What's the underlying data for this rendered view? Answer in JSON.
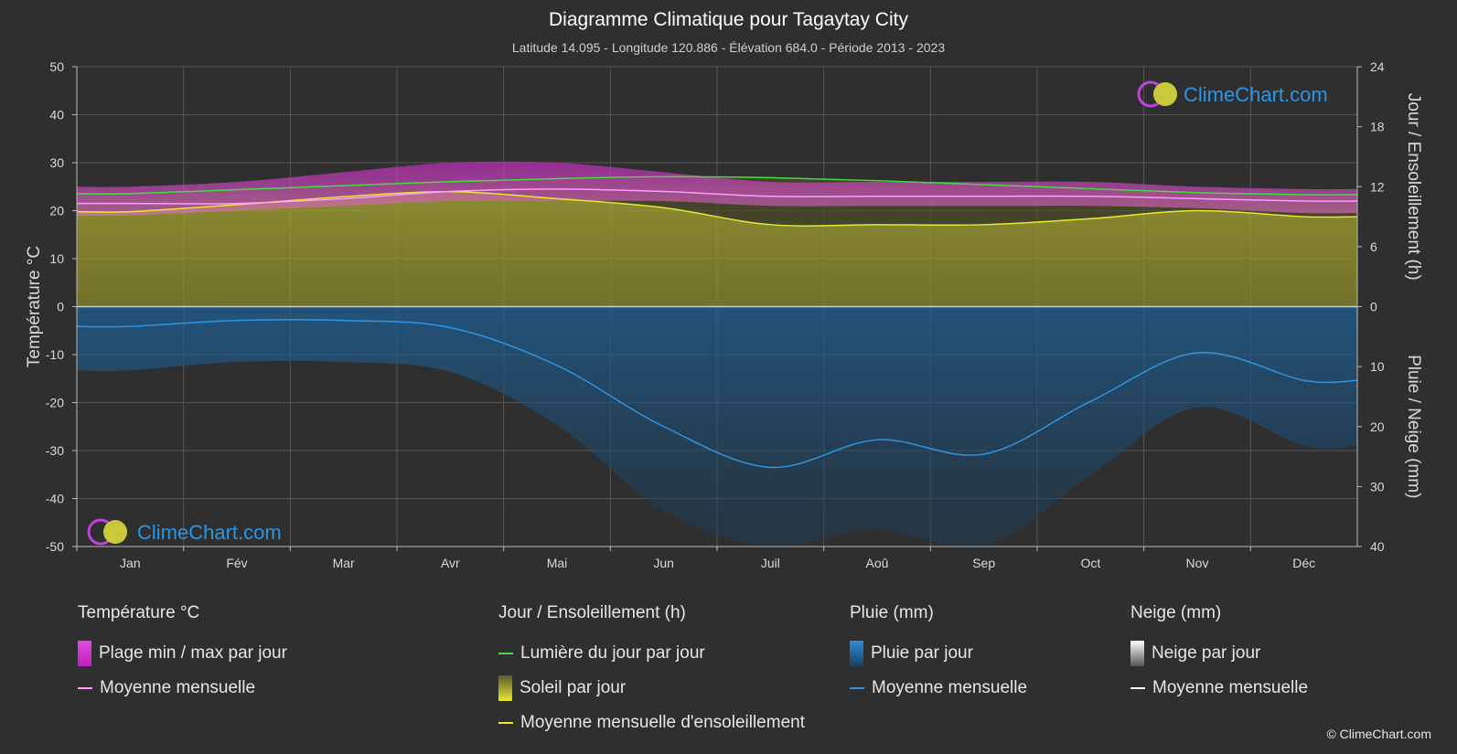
{
  "title": "Diagramme Climatique pour Tagaytay City",
  "subtitle": "Latitude 14.095 - Longitude 120.886 - Élévation 684.0 - Période 2013 - 2023",
  "brand": "ClimeChart.com",
  "copyright": "© ClimeChart.com",
  "colors": {
    "background": "#2f2f2f",
    "temp_range": "#d42fd4",
    "temp_mean": "#ff9cff",
    "daylight": "#44dd44",
    "sunshine_fill": "#9a9a2c",
    "sunshine_mean": "#e8e832",
    "rain_fill": "#1d5b8c",
    "rain_mean": "#2b95e6",
    "snow_mean": "#ffffff",
    "brand": "#2b95e6"
  },
  "legend": {
    "temperature": {
      "title": "Température °C",
      "range_label": "Plage min / max par jour",
      "mean_label": "Moyenne mensuelle"
    },
    "sun": {
      "title": "Jour / Ensoleillement (h)",
      "daylight_label": "Lumière du jour par jour",
      "sunshine_label": "Soleil par jour",
      "sunshine_mean_label": "Moyenne mensuelle d'ensoleillement"
    },
    "rain": {
      "title": "Pluie (mm)",
      "rain_label": "Pluie par jour",
      "mean_label": "Moyenne mensuelle"
    },
    "snow": {
      "title": "Neige (mm)",
      "snow_label": "Neige par jour",
      "mean_label": "Moyenne mensuelle"
    }
  },
  "chart_data": {
    "type": "area",
    "categories": [
      "Jan",
      "Fév",
      "Mar",
      "Avr",
      "Mai",
      "Jun",
      "Juil",
      "Aoû",
      "Sep",
      "Oct",
      "Nov",
      "Déc"
    ],
    "y_left": {
      "label": "Température °C",
      "range": [
        -50,
        50
      ],
      "ticks": [
        50,
        40,
        30,
        20,
        10,
        0,
        -10,
        -20,
        -30,
        -40,
        -50
      ]
    },
    "y_right_top": {
      "label": "Jour / Ensoleillement (h)",
      "range": [
        0,
        24
      ],
      "ticks": [
        24,
        18,
        12,
        6,
        0
      ]
    },
    "y_right_bottom": {
      "label": "Pluie / Neige (mm)",
      "range": [
        0,
        40
      ],
      "ticks": [
        0,
        10,
        20,
        30,
        40
      ]
    },
    "grid": true,
    "series": [
      {
        "name": "Plage min / max par jour",
        "min": [
          19,
          20,
          21,
          22,
          22,
          22,
          21,
          21,
          21,
          21,
          20.5,
          19.5
        ],
        "max": [
          25,
          26,
          28,
          30,
          30,
          28,
          26,
          26,
          26,
          26,
          25,
          24.5
        ]
      },
      {
        "name": "Moyenne mensuelle",
        "values": [
          21.5,
          21.5,
          22.5,
          24,
          24.5,
          24,
          23,
          23,
          23,
          23,
          22.5,
          22
        ]
      },
      {
        "name": "Lumière du jour par jour",
        "values": [
          11.3,
          11.7,
          12.1,
          12.5,
          12.8,
          13.0,
          12.9,
          12.6,
          12.2,
          11.8,
          11.4,
          11.2
        ]
      },
      {
        "name": "Moyenne mensuelle d'ensoleillement",
        "values": [
          9.5,
          10.2,
          11.0,
          11.5,
          10.8,
          9.9,
          8.2,
          8.2,
          8.2,
          8.8,
          9.6,
          9.0
        ]
      },
      {
        "name": "Pluie moyenne mensuelle",
        "values": [
          3.3,
          2.3,
          2.3,
          3.5,
          9.8,
          20.0,
          26.8,
          22.2,
          24.6,
          15.8,
          7.7,
          12.3
        ]
      },
      {
        "name": "Neige moyenne mensuelle",
        "values": [
          0,
          0,
          0,
          0,
          0,
          0,
          0,
          0,
          0,
          0,
          0,
          0
        ]
      }
    ]
  }
}
